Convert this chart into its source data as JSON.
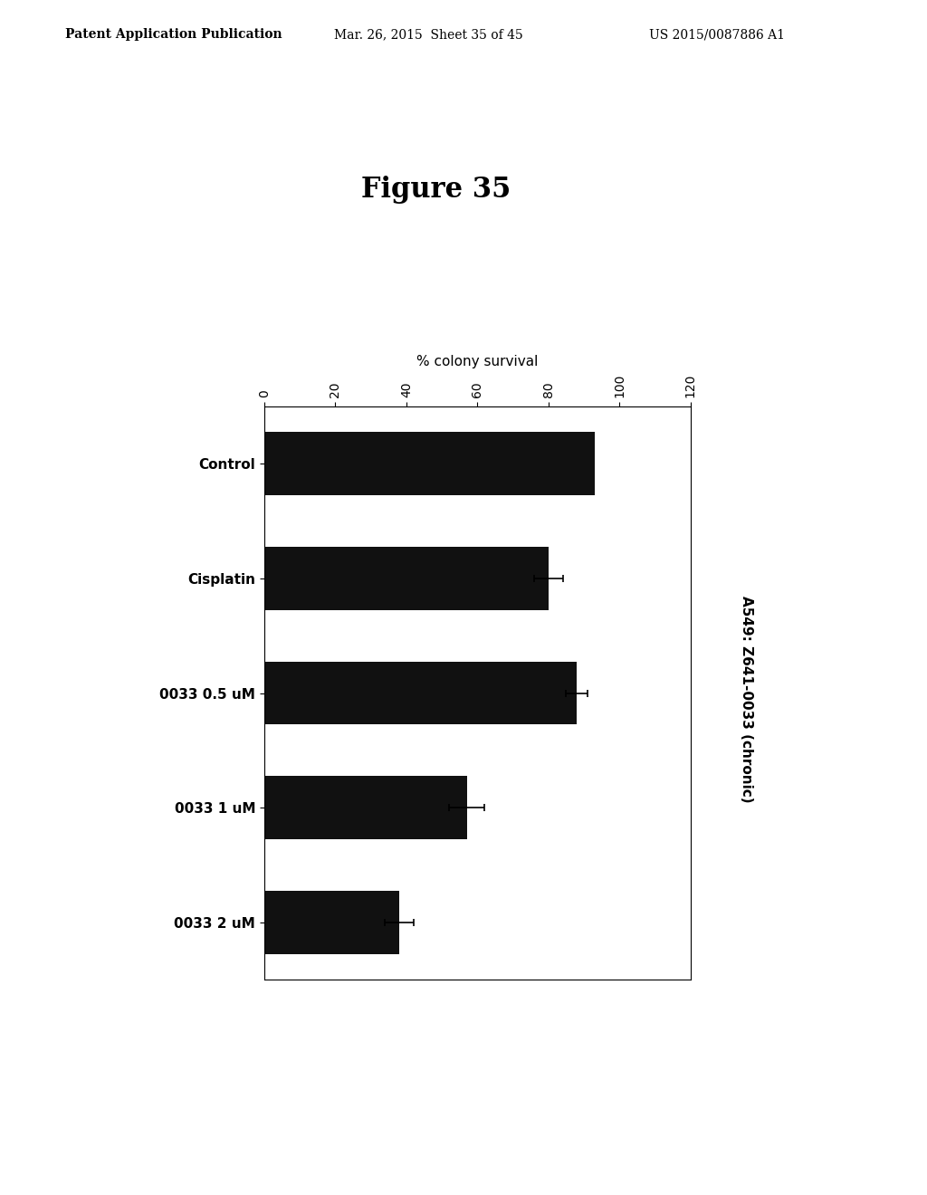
{
  "title": "Figure 35",
  "header_left": "Patent Application Publication",
  "header_center": "Mar. 26, 2015  Sheet 35 of 45",
  "header_right": "US 2015/0087886 A1",
  "xlabel": "% colony survival",
  "ylabel_right": "A549: Z641-0033 (chronic)",
  "categories": [
    "Control",
    "Cisplatin",
    "0033 0.5 uM",
    "0033 1 uM",
    "0033 2 uM"
  ],
  "values": [
    93,
    80,
    88,
    57,
    38
  ],
  "errors": [
    0,
    4,
    3,
    5,
    4
  ],
  "xlim": [
    0,
    120
  ],
  "xticks": [
    0,
    20,
    40,
    60,
    80,
    100,
    120
  ],
  "bar_color": "#111111",
  "background_color": "#ffffff",
  "figure_bg": "#ffffff"
}
